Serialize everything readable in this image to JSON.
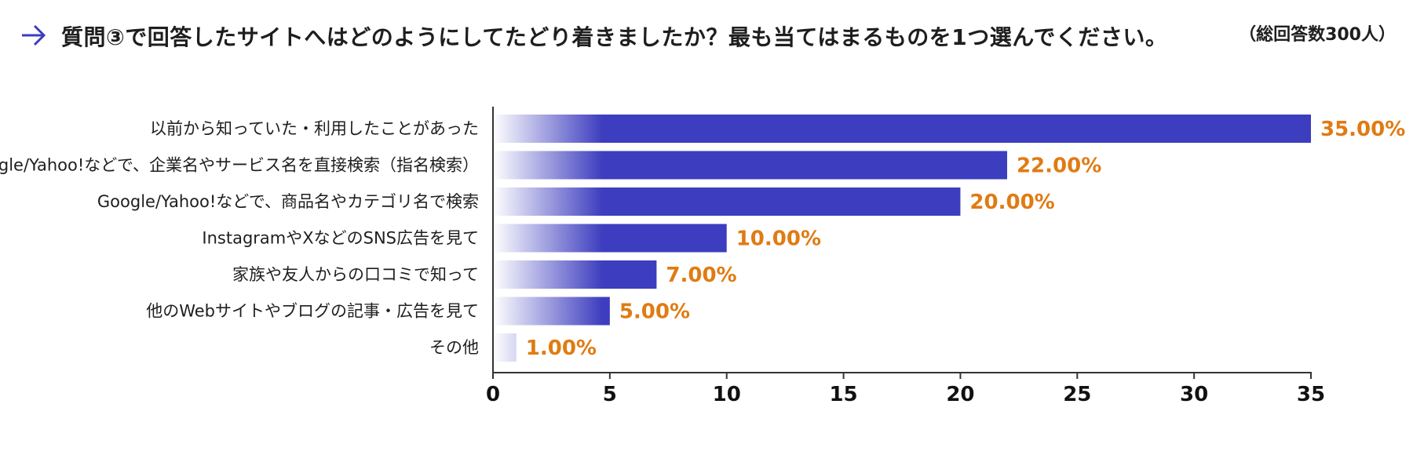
{
  "header": {
    "title": "質問③で回答したサイトへはどのようにしてたどり着きましたか？最も当てはまるものを1つ選んでください。",
    "note": "（総回答数300人）"
  },
  "colors": {
    "bar": "#3d3dbf",
    "value_label": "#e07b12",
    "axis": "#333333",
    "arrow": "#3d3dbf"
  },
  "chart_data": {
    "type": "bar",
    "orientation": "horizontal",
    "categories": [
      "以前から知っていた・利用したことがあった",
      "Google/Yahoo!などで、企業名やサービス名を直接検索（指名検索）",
      "Google/Yahoo!などで、商品名やカテゴリ名で検索",
      "InstagramやXなどのSNS広告を見て",
      "家族や友人からの口コミで知って",
      "他のWebサイトやブログの記事・広告を見て",
      "その他"
    ],
    "values": [
      35,
      22,
      20,
      10,
      7,
      5,
      1
    ],
    "value_labels": [
      "35.00%",
      "22.00%",
      "20.00%",
      "10.00%",
      "7.00%",
      "5.00%",
      "1.00%"
    ],
    "xlim": [
      0,
      35
    ],
    "xticks": [
      0,
      5,
      10,
      15,
      20,
      25,
      30,
      35
    ],
    "grid": false
  }
}
